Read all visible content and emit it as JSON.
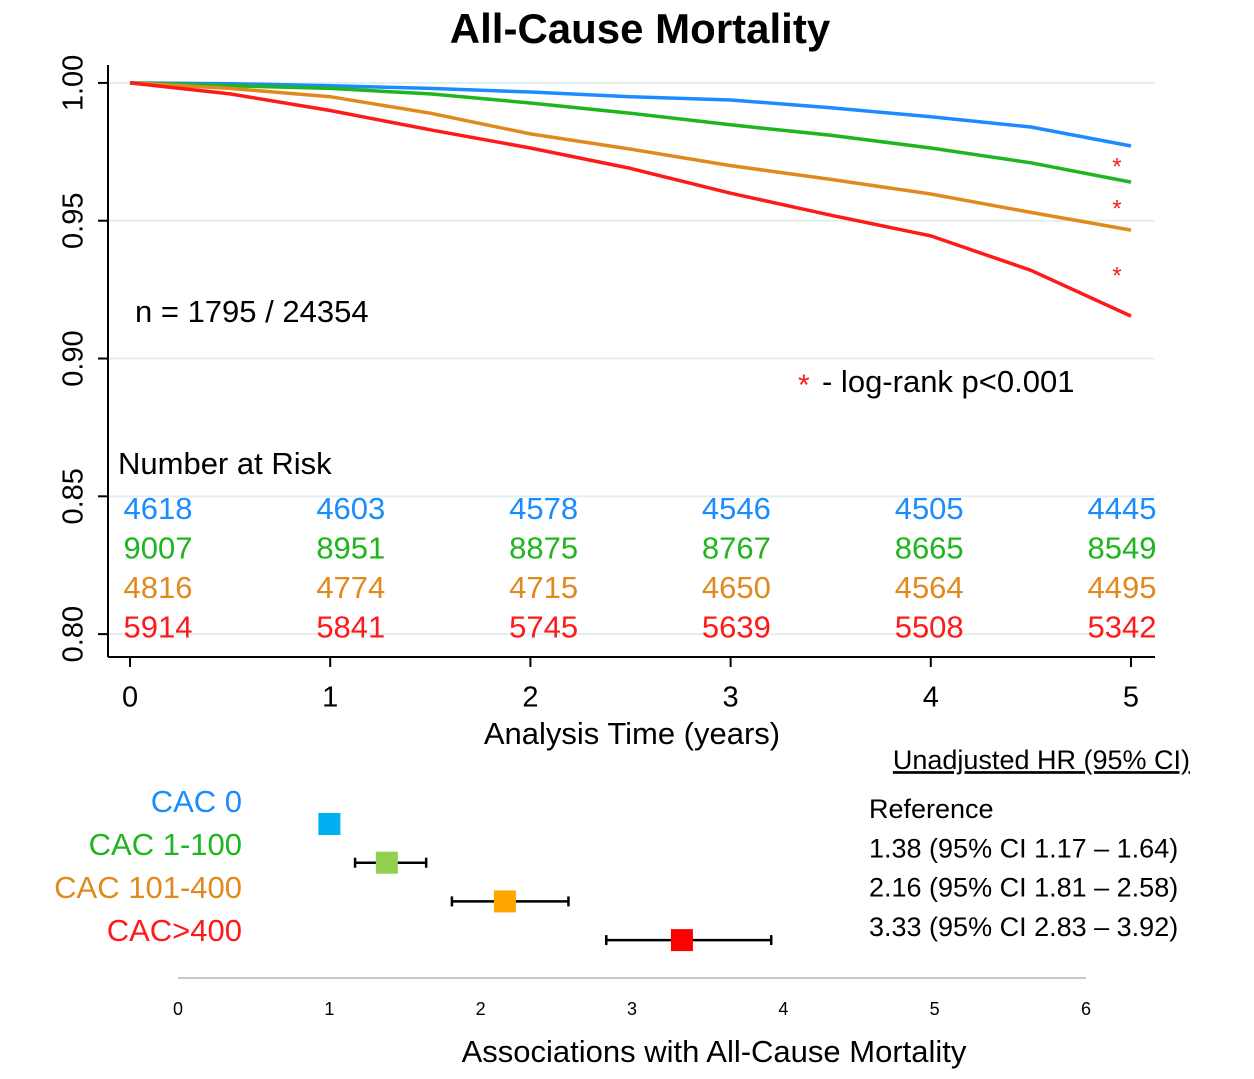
{
  "chart_data": [
    {
      "type": "line",
      "title": "All-Cause Mortality",
      "xlabel": "Analysis Time (years)",
      "x": [
        0,
        0.5,
        1,
        1.5,
        2,
        2.5,
        3,
        3.5,
        4,
        4.5,
        5
      ],
      "series": [
        {
          "name": "CAC 0",
          "color": "#1a8cff",
          "values": [
            1,
            0.9997,
            0.999,
            0.998,
            0.9967,
            0.995,
            0.9938,
            0.991,
            0.9877,
            0.984,
            0.9771
          ]
        },
        {
          "name": "CAC 1-100",
          "color": "#1fb51f",
          "values": [
            1,
            0.999,
            0.998,
            0.996,
            0.9927,
            0.989,
            0.9848,
            0.981,
            0.9764,
            0.971,
            0.964
          ]
        },
        {
          "name": "CAC 101-400",
          "color": "#e08a1e",
          "values": [
            1,
            0.998,
            0.995,
            0.989,
            0.9815,
            0.976,
            0.97,
            0.965,
            0.9597,
            0.953,
            0.9466
          ]
        },
        {
          "name": "CAC>400",
          "color": "#ff1a1a",
          "values": [
            1,
            0.996,
            0.99,
            0.983,
            0.9764,
            0.969,
            0.96,
            0.952,
            0.9445,
            0.932,
            0.9154
          ]
        }
      ],
      "xlim": [
        -0.11,
        5.12
      ],
      "xticks": [
        0,
        1,
        2,
        3,
        4,
        5
      ],
      "ylim": [
        0.7917,
        1.0065
      ],
      "yticks": [
        {
          "value": 0.8,
          "label": "0.80"
        },
        0.85,
        {
          "value": 0.9,
          "label": "0.90"
        },
        0.95,
        {
          "value": 1,
          "label": "1.00"
        }
      ],
      "grid": true,
      "annotations": {
        "n_text": "n = 1795 / 24354",
        "stars": [
          "*",
          "*",
          "*"
        ],
        "note_marker": "*",
        "note": "- log-rank p<0.001"
      },
      "risk_table": {
        "title": "Number at Risk",
        "rows": [
          [
            4618,
            4603,
            4578,
            4546,
            4505,
            4445
          ],
          [
            9007,
            8951,
            8875,
            8767,
            8665,
            8549
          ],
          [
            4816,
            4774,
            4715,
            4650,
            4564,
            4495
          ],
          [
            5914,
            5841,
            5745,
            5639,
            5508,
            5342
          ]
        ]
      }
    },
    {
      "type": "forest",
      "xlabel": "Associations with All-Cause Mortality",
      "categories": [
        "CAC 0",
        "CAC 1-100",
        "CAC 101-400",
        "CAC>400"
      ],
      "label_colors": [
        "#1a8cff",
        "#1fb51f",
        "#e08a1e",
        "#ff1a1a"
      ],
      "colors": [
        "#00b0f0",
        "#92d050",
        "#ffa500",
        "#ff0000"
      ],
      "values": [
        1,
        1.38,
        2.16,
        3.33
      ],
      "lower": [
        null,
        1.17,
        1.81,
        2.83
      ],
      "upper": [
        null,
        1.64,
        2.58,
        3.92
      ],
      "table_title": "Unadjusted HR (95% CI)",
      "value_labels": [
        "Reference",
        "1.38 (95% CI 1.17 – 1.64)",
        "2.16 (95% CI 1.81 – 2.58)",
        "3.33 (95% CI 2.83 – 3.92)"
      ],
      "xlim": [
        0,
        6
      ],
      "xticks": [
        0,
        1,
        2,
        3,
        4,
        5,
        6
      ]
    }
  ]
}
